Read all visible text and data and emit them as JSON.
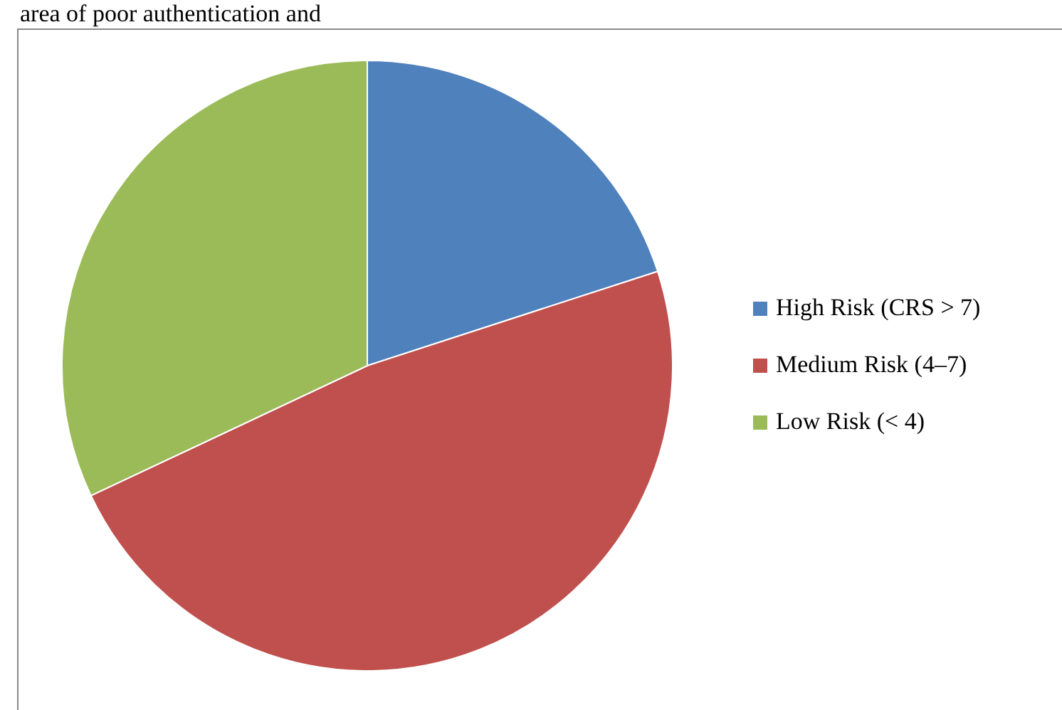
{
  "chart_data": {
    "type": "pie",
    "annotations": [
      "area of poor authentication and"
    ],
    "categories": [
      "High Risk (CRS > 7)",
      "Medium Risk (4–7)",
      "Low Risk (< 4)"
    ],
    "values": [
      20,
      48,
      32
    ],
    "colors": [
      "#4f81bd",
      "#c0504d",
      "#9bbb59"
    ],
    "legend": "right"
  }
}
